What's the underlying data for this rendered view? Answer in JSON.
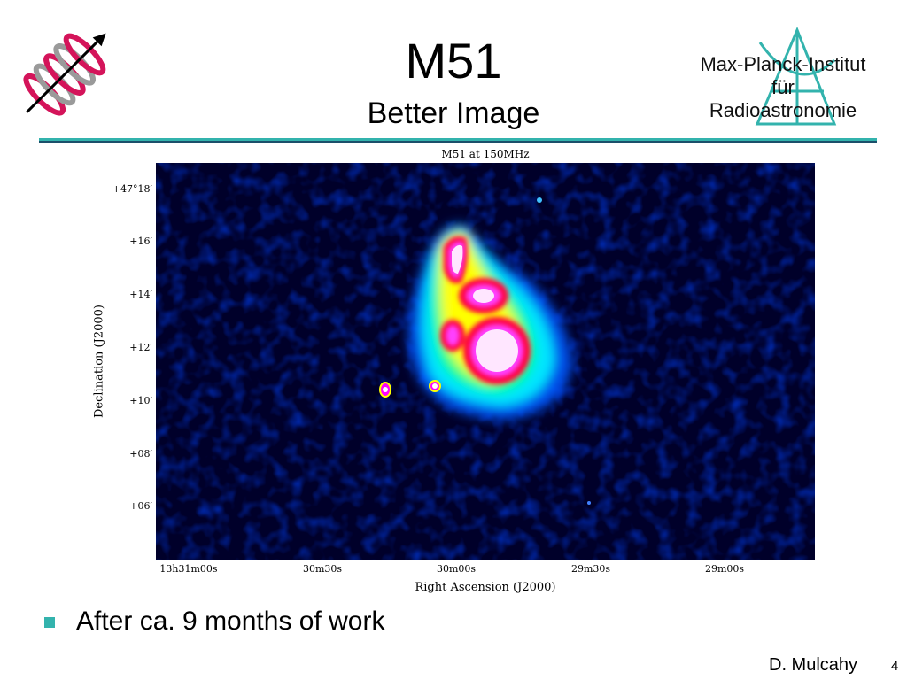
{
  "slide": {
    "title": "M51",
    "subtitle": "Better Image",
    "bullet": "After ca. 9 months of work",
    "author": "D. Mulcahy",
    "page_number": "4",
    "accent_color": "#33b3ad"
  },
  "logos": {
    "institute": {
      "line1": "Max-Planck-Institut",
      "line2": "für",
      "line3": "Radioastronomie"
    },
    "left_logo_icon": "helix-arrow-logo"
  },
  "figure": {
    "plot_title": "M51 at 150MHz",
    "xlabel": "Right Ascension (J2000)",
    "ylabel": "Declination (J2000)",
    "yticks": [
      "+47°18′",
      "+16′",
      "+14′",
      "+12′",
      "+10′",
      "+08′",
      "+06′"
    ],
    "xticks": [
      "13h31m00s",
      "30m30s",
      "30m00s",
      "29m30s",
      "29m00s"
    ],
    "colormap": [
      "#000033",
      "#0000aa",
      "#00e0ff",
      "#00ff60",
      "#ffff00",
      "#ff0000",
      "#ff00ff",
      "#ffffff"
    ]
  }
}
